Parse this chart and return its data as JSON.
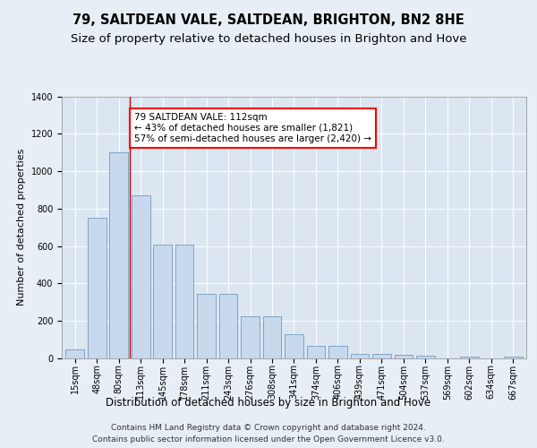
{
  "title1": "79, SALTDEAN VALE, SALTDEAN, BRIGHTON, BN2 8HE",
  "title2": "Size of property relative to detached houses in Brighton and Hove",
  "xlabel": "Distribution of detached houses by size in Brighton and Hove",
  "ylabel": "Number of detached properties",
  "footnote": "Contains HM Land Registry data © Crown copyright and database right 2024.\nContains public sector information licensed under the Open Government Licence v3.0.",
  "annotation_line1": "79 SALTDEAN VALE: 112sqm",
  "annotation_line2": "← 43% of detached houses are smaller (1,821)",
  "annotation_line3": "57% of semi-detached houses are larger (2,420) →",
  "bar_color": "#c9d9ed",
  "bar_edge_color": "#5b8db8",
  "vline_color": "#cc0000",
  "background_color": "#e8eef5",
  "plot_bg_color": "#dce6f1",
  "grid_color": "#ffffff",
  "categories": [
    "15sqm",
    "48sqm",
    "80sqm",
    "113sqm",
    "145sqm",
    "178sqm",
    "211sqm",
    "243sqm",
    "276sqm",
    "308sqm",
    "341sqm",
    "374sqm",
    "406sqm",
    "439sqm",
    "471sqm",
    "504sqm",
    "537sqm",
    "569sqm",
    "602sqm",
    "634sqm",
    "667sqm"
  ],
  "values": [
    50,
    750,
    1100,
    870,
    610,
    610,
    345,
    345,
    225,
    225,
    130,
    65,
    68,
    25,
    25,
    20,
    14,
    0,
    8,
    0,
    10
  ],
  "ylim": [
    0,
    1400
  ],
  "yticks": [
    0,
    200,
    400,
    600,
    800,
    1000,
    1200,
    1400
  ],
  "vline_x_index": 2.5,
  "title1_fontsize": 10.5,
  "title2_fontsize": 9.5,
  "xlabel_fontsize": 8.5,
  "ylabel_fontsize": 8,
  "tick_fontsize": 7,
  "annot_fontsize": 7.5,
  "footnote_fontsize": 6.5
}
